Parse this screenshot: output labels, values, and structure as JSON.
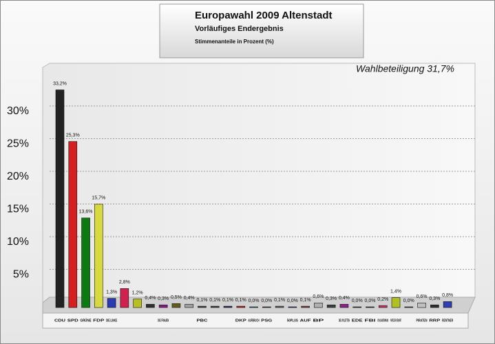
{
  "chart_data": {
    "type": "bar",
    "title": "Europawahl 2009 Altenstadt",
    "subtitle": "Vorläufiges Endergebnis",
    "y_label": "Stimmenanteile in Prozent (%)",
    "annotation": "Wahlbeteiligung 31,7%",
    "categories": [
      "CDU",
      "SPD",
      "GRÜNE",
      "FDP",
      "DIE LINKE",
      null,
      null,
      null,
      "DIE FRAUEN",
      null,
      null,
      "PBC",
      null,
      null,
      "DKP",
      "AUFBRUCH",
      "PSG",
      null,
      "50PLUS",
      "AUF",
      "BP",
      null,
      "DIE VIOLETTEN",
      "EDE",
      "FBI",
      "VOLKSABSTIMMUNG",
      "PARTEI DER VERNUNFT",
      null,
      "PIRATEN",
      "RRP",
      "RENTNER"
    ],
    "values": [
      33.2,
      25.3,
      13.6,
      15.7,
      1.3,
      2.8,
      1.2,
      0.4,
      0.3,
      0.5,
      0.4,
      0.1,
      0.1,
      0.1,
      0.1,
      0.0,
      0.0,
      0.1,
      0.0,
      0.1,
      0.6,
      0.3,
      0.4,
      0.0,
      0.0,
      0.2,
      1.4,
      0.0,
      0.6,
      0.3,
      0.8
    ],
    "value_labels": [
      "33,2%",
      "25,3%",
      "13,6%",
      "15,7%",
      "1,3%",
      "2,8%",
      "1,2%",
      "0,4%",
      "0,3%",
      "0,5%",
      "0,4%",
      "0,1%",
      "0,1%",
      "0,1%",
      "0,1%",
      "0,0%",
      "0,0%",
      "0,1%",
      "0,0%",
      "0,1%",
      "0,6%",
      "0,3%",
      "0,4%",
      "0,0%",
      "0,0%",
      "0,2%",
      "1,4%",
      "0,0%",
      "0,6%",
      "0,3%",
      "0,8%"
    ],
    "colors": [
      "#222222",
      "#d42020",
      "#0c7a10",
      "#d8d840",
      "#2a3ab0",
      "#d02050",
      "#b8c020",
      "#303030",
      "#8a1a8a",
      "#6a5a20",
      "#a0a0a0",
      "#404040",
      "#404040",
      "#303060",
      "#c02020",
      "#208080",
      "#404040",
      "#606060",
      "#3a3a8a",
      "#8a3a3a",
      "#b0b0b0",
      "#404040",
      "#8a208a",
      "#404040",
      "#404040",
      "#d03060",
      "#b0c020",
      "#505050",
      "#c0c0c0",
      "#303030",
      "#3040b0"
    ],
    "ylim": [
      0,
      36
    ],
    "yticks": [
      {
        "value": 5,
        "label": "5%"
      },
      {
        "value": 10,
        "label": "10%"
      },
      {
        "value": 15,
        "label": "15%"
      },
      {
        "value": 20,
        "label": "20%"
      },
      {
        "value": 25,
        "label": "25%"
      },
      {
        "value": 30,
        "label": "30%"
      }
    ],
    "grid": true
  }
}
